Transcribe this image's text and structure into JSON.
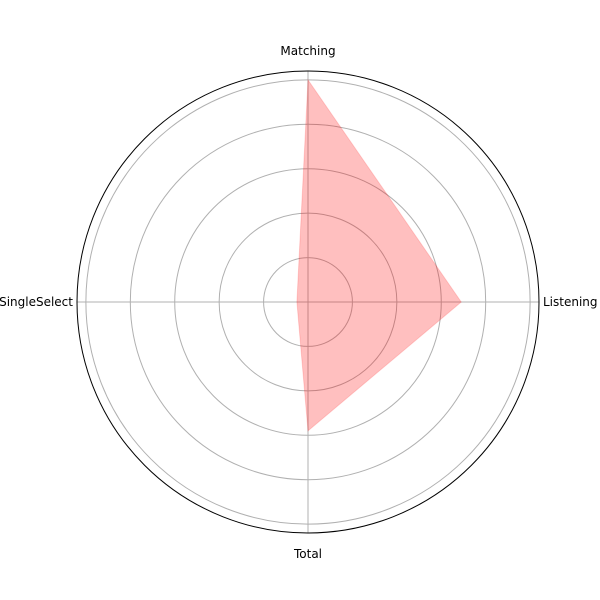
{
  "chart_data": {
    "type": "radar",
    "categories": [
      "Listening",
      "Matching",
      "SingleSelect",
      "Total"
    ],
    "values": [
      0.69,
      1.0,
      0.05,
      0.58
    ],
    "rmax": 1.04,
    "grid": true,
    "colors": {
      "fill": "#ff0000",
      "fill_opacity": 0.25,
      "grid": "#b0b0b0",
      "outer": "#000000"
    }
  }
}
